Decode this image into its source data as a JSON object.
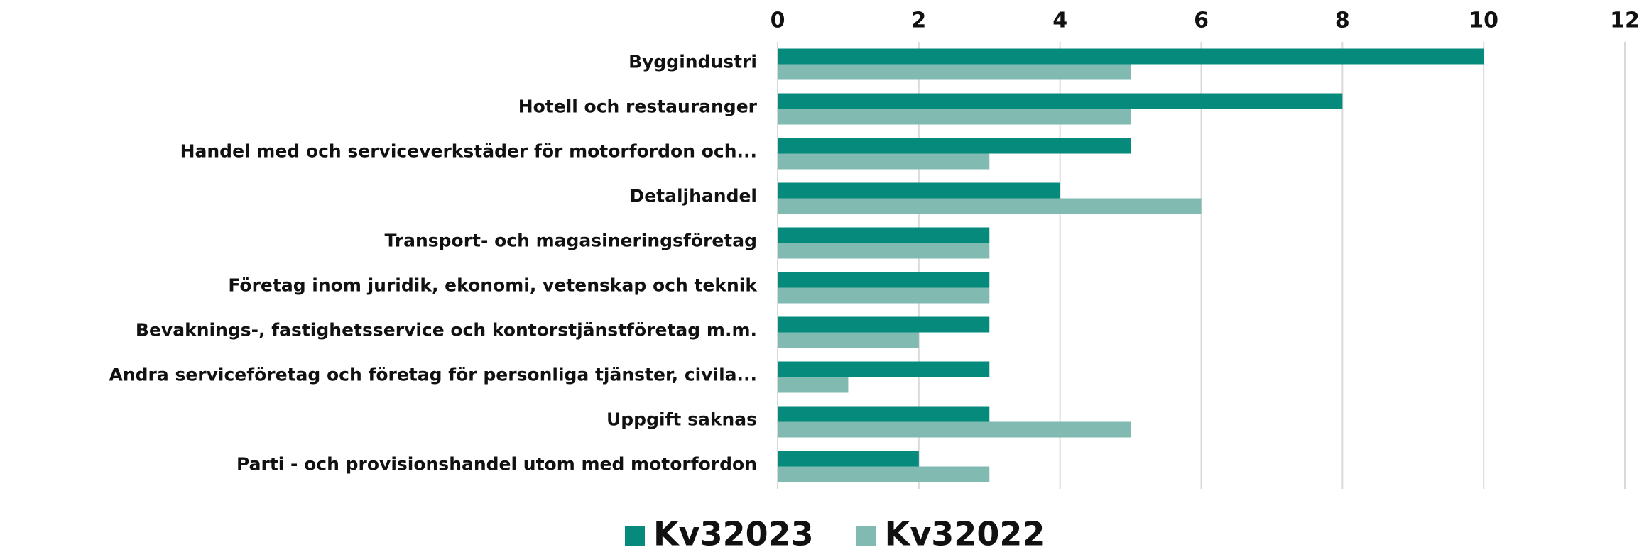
{
  "chart_data": {
    "type": "barh",
    "categories": [
      "Byggindustri",
      "Hotell och restauranger",
      "Handel med och serviceverkstäder för motorfordon och...",
      "Detaljhandel",
      "Transport- och magasineringsföretag",
      "Företag inom juridik, ekonomi, vetenskap och teknik",
      "Bevaknings-, fastighetsservice och kontorstjänstföretag m.m.",
      "Andra serviceföretag och företag för personliga tjänster, civila...",
      "Uppgift saknas",
      "Parti - och provisionshandel utom med motorfordon"
    ],
    "series": [
      {
        "name": "Kv32023",
        "color": "#058a7c",
        "values": [
          10,
          8,
          5,
          4,
          3,
          3,
          3,
          3,
          3,
          2
        ]
      },
      {
        "name": "Kv32022",
        "color": "#80bab1",
        "values": [
          5,
          5,
          3,
          6,
          3,
          3,
          2,
          1,
          5,
          3
        ]
      }
    ],
    "xlim": [
      0,
      12
    ],
    "xticks": [
      0,
      2,
      4,
      6,
      8,
      10,
      12
    ],
    "grid": true,
    "legend": "bottom"
  }
}
